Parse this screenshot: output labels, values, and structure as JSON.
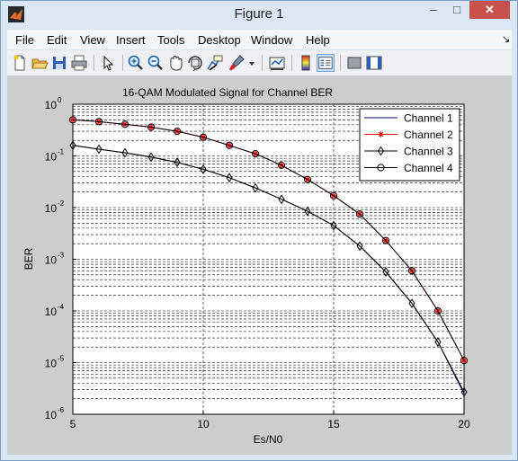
{
  "window": {
    "title": "Figure 1",
    "minimize": "–",
    "maximize": "□",
    "close": "✕"
  },
  "menu": {
    "items": [
      "File",
      "Edit",
      "View",
      "Insert",
      "Tools",
      "Desktop",
      "Window",
      "Help"
    ],
    "more_icon": "dock-arrow-icon"
  },
  "toolbar": {
    "icons": [
      "new-figure-icon",
      "open-file-icon",
      "save-icon",
      "print-icon",
      "edit-plot-icon",
      "zoom-in-icon",
      "zoom-out-icon",
      "pan-icon",
      "rotate-3d-icon",
      "data-cursor-icon",
      "brush-icon",
      "link-plot-icon",
      "colorbar-icon",
      "legend-icon",
      "hide-plot-tools-icon",
      "show-plot-tools-icon"
    ],
    "active": [
      "legend-icon"
    ]
  },
  "chart_data": {
    "type": "line",
    "title": "16-QAM Modulated Signal for Channel BER",
    "xlabel": "Es/N0",
    "ylabel": "BER",
    "xlim": [
      5,
      20
    ],
    "ylim": [
      1e-06,
      1
    ],
    "yscale": "log",
    "grid": true,
    "xticks": [
      "5",
      "10",
      "15",
      "20"
    ],
    "yticks": [
      {
        "base": "10",
        "exp": "-6"
      },
      {
        "base": "10",
        "exp": "-5"
      },
      {
        "base": "10",
        "exp": "-4"
      },
      {
        "base": "10",
        "exp": "-3"
      },
      {
        "base": "10",
        "exp": "-2"
      },
      {
        "base": "10",
        "exp": "-1"
      },
      {
        "base": "10",
        "exp": "0"
      }
    ],
    "legend_position": "top-right",
    "x": [
      5,
      6,
      7,
      8,
      9,
      10,
      11,
      12,
      13,
      14,
      15,
      16,
      17,
      18,
      19,
      20
    ],
    "series": [
      {
        "name": "Channel 1",
        "color": "#00007f",
        "marker": "none",
        "values": [
          0.16,
          0.135,
          0.115,
          0.095,
          0.075,
          0.055,
          0.038,
          0.024,
          0.0145,
          0.0085,
          0.0045,
          0.0018,
          0.00057,
          0.00014,
          2.5e-05,
          2.5e-06
        ]
      },
      {
        "name": "Channel 2",
        "color": "#ff0000",
        "marker": "star",
        "values": [
          0.5,
          0.46,
          0.41,
          0.36,
          0.3,
          0.23,
          0.16,
          0.11,
          0.066,
          0.035,
          0.017,
          0.0075,
          0.0023,
          0.0006,
          0.0001,
          1.1e-05
        ]
      },
      {
        "name": "Channel 3",
        "color": "#000000",
        "marker": "diamond",
        "values": [
          0.16,
          0.135,
          0.115,
          0.095,
          0.075,
          0.055,
          0.038,
          0.024,
          0.0145,
          0.0085,
          0.0045,
          0.0018,
          0.00057,
          0.00014,
          2.5e-05,
          2.7e-06
        ]
      },
      {
        "name": "Channel 4",
        "color": "#000000",
        "marker": "circle",
        "values": [
          0.5,
          0.46,
          0.41,
          0.36,
          0.3,
          0.23,
          0.16,
          0.11,
          0.066,
          0.035,
          0.017,
          0.0075,
          0.0023,
          0.0006,
          0.0001,
          1.1e-05
        ]
      }
    ]
  }
}
